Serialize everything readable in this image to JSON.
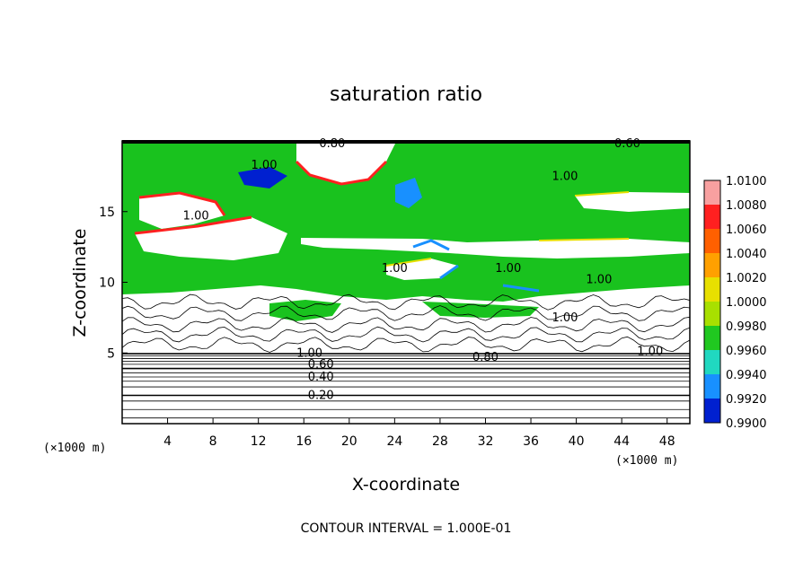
{
  "chart_data": {
    "type": "heatmap",
    "title": "saturation ratio",
    "xlabel": "X-coordinate",
    "ylabel": "Z-coordinate",
    "x_unit": "(×1000 m)",
    "z_unit": "(×1000 m)",
    "xlim": [
      0,
      50
    ],
    "ylim": [
      0,
      20
    ],
    "x_ticks": [
      "4",
      "8",
      "12",
      "16",
      "20",
      "24",
      "28",
      "32",
      "36",
      "40",
      "44",
      "48"
    ],
    "y_ticks": [
      "5",
      "10",
      "15"
    ],
    "colorbar": {
      "labels": [
        "1.0100",
        "1.0080",
        "1.0060",
        "1.0040",
        "1.0020",
        "1.0000",
        "0.9980",
        "0.9960",
        "0.9940",
        "0.9920",
        "0.9900"
      ],
      "colors": [
        "#f8a0a0",
        "#ff2020",
        "#ff6000",
        "#ffa000",
        "#e8e000",
        "#a8e000",
        "#20c820",
        "#20d8c0",
        "#1890ff",
        "#0020d0",
        "#6010a0"
      ]
    },
    "contour_labels": [
      {
        "text": "0.80",
        "x": 18.5,
        "z": 19.8
      },
      {
        "text": "0.60",
        "x": 44.5,
        "z": 19.8
      },
      {
        "text": "1.00",
        "x": 12.5,
        "z": 18.3
      },
      {
        "text": "1.00",
        "x": 39.0,
        "z": 17.5
      },
      {
        "text": "1.00",
        "x": 6.5,
        "z": 14.7
      },
      {
        "text": "1.00",
        "x": 24.0,
        "z": 11.0
      },
      {
        "text": "1.00",
        "x": 34.0,
        "z": 11.0
      },
      {
        "text": "1.00",
        "x": 42.0,
        "z": 10.2
      },
      {
        "text": "1.00",
        "x": 39.0,
        "z": 7.5
      },
      {
        "text": "1.00",
        "x": 16.5,
        "z": 5.0
      },
      {
        "text": "1.00",
        "x": 46.5,
        "z": 5.1
      },
      {
        "text": "0.80",
        "x": 32.0,
        "z": 4.7
      },
      {
        "text": "0.60",
        "x": 17.5,
        "z": 4.2
      },
      {
        "text": "0.40",
        "x": 17.5,
        "z": 3.3
      },
      {
        "text": "0.20",
        "x": 17.5,
        "z": 2.0
      }
    ],
    "footer": "CONTOUR INTERVAL = 1.000E-01"
  }
}
